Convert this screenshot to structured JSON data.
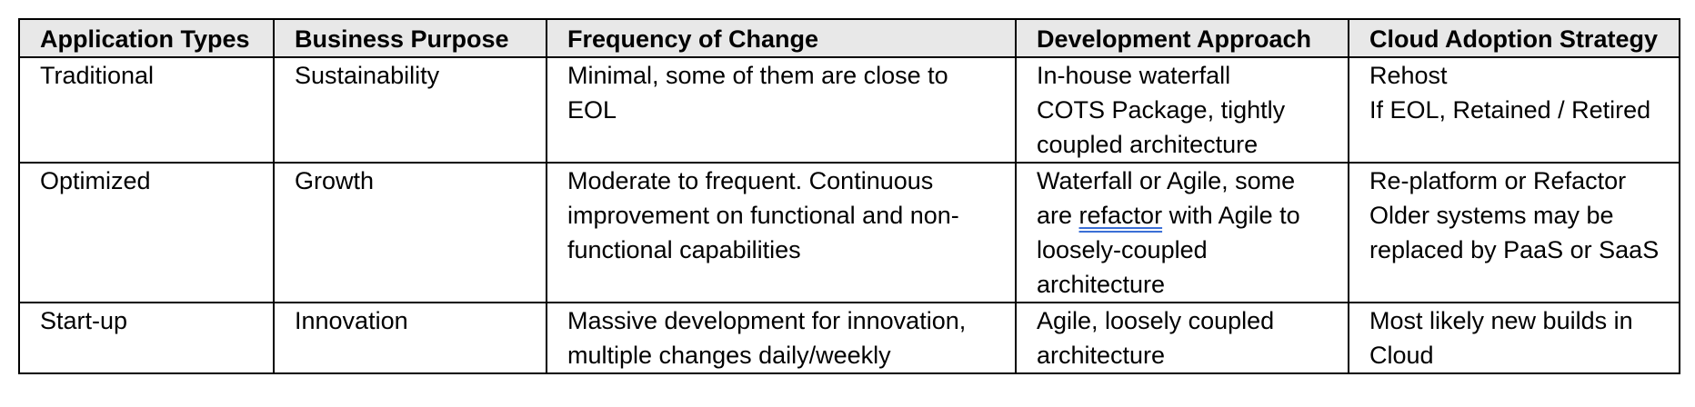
{
  "table": {
    "headers": [
      "Application Types",
      "Business Purpose",
      "Frequency of Change",
      "Development Approach",
      "Cloud Adoption Strategy"
    ],
    "rows": [
      {
        "type": "Traditional",
        "purpose": "Sustainability",
        "frequency": [
          "Minimal, some of them are close to",
          "EOL"
        ],
        "approach": [
          "In-house waterfall",
          "COTS Package, tightly",
          "coupled architecture"
        ],
        "strategy": [
          "Rehost",
          "If EOL, Retained / Retired"
        ]
      },
      {
        "type": "Optimized",
        "purpose": "Growth",
        "frequency": [
          "Moderate to frequent. Continuous",
          "improvement on functional and non-",
          "functional capabilities"
        ],
        "approach": {
          "line1": "Waterfall or Agile, some",
          "line2_prefix": "are ",
          "line2_flagged": "refactor",
          "line2_suffix": " with Agile to",
          "line3": "loosely-coupled",
          "line4": "architecture"
        },
        "strategy": [
          "Re-platform or Refactor",
          "Older systems may be",
          "replaced by PaaS or SaaS"
        ]
      },
      {
        "type": "Start-up",
        "purpose": "Innovation",
        "frequency": [
          "Massive development for innovation,",
          "multiple changes daily/weekly"
        ],
        "approach": [
          "Agile, loosely coupled",
          "architecture"
        ],
        "strategy": [
          "Most likely new builds in",
          "Cloud"
        ]
      }
    ]
  }
}
